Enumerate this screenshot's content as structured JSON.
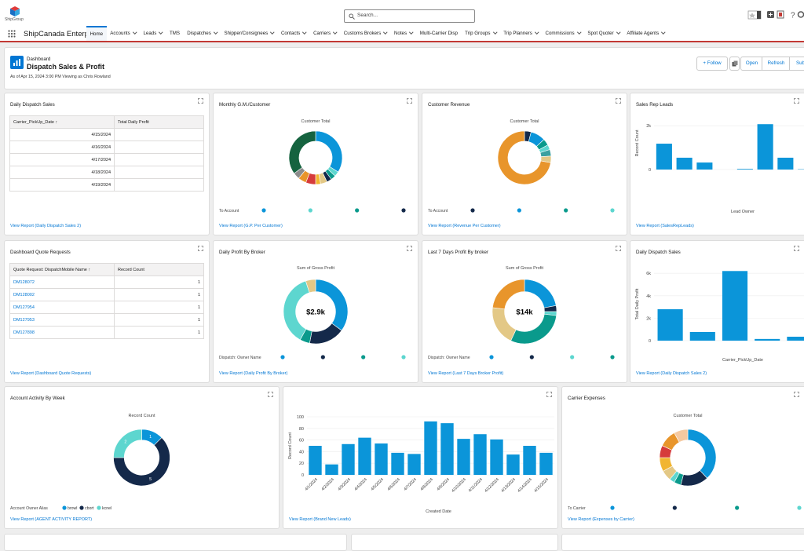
{
  "header": {
    "logo": "ShipGroup",
    "search": "Search...",
    "app_name": "ShipCanada Enterp...",
    "tabs": [
      "Home",
      "Accounts",
      "Leads",
      "TMS",
      "Dispatches",
      "Shipper/Consignees",
      "Contacts",
      "Carriers",
      "Customs Brokers",
      "Notes",
      "Multi-Carrier Disp",
      "Trip Groups",
      "Trip Planners",
      "Commissions",
      "Spot Quoter",
      "Affiliate Agents"
    ]
  },
  "dashboard": {
    "label": "Dashboard",
    "title": "Dispatch Sales & Profit",
    "subtitle": "As of Apr 15, 2024 3:00 PM Viewing as Chris Rowland",
    "follow": "Follow",
    "buttons": [
      "Open",
      "Refresh",
      "Subs"
    ]
  },
  "widgets": [
    {
      "type": "table",
      "title": "Daily Dispatch Sales",
      "footer": "View Report (Daily Dispatch Sales 2)",
      "columns": [
        "Carrier_PickUp_Date ↑",
        "Total Daily Profit"
      ],
      "rows": [
        [
          "4/15/2024"
        ],
        [
          "4/16/2024"
        ],
        [
          "4/17/2024"
        ],
        [
          "4/18/2024"
        ],
        [
          "4/19/2024"
        ]
      ]
    },
    {
      "type": "donut",
      "title": "Monthly G.M./Customer",
      "footer": "View Report (G.P. Per Customer)",
      "measure": "Customer Total",
      "legend_title": "To Account",
      "values": [
        34,
        3,
        3,
        3,
        4,
        3,
        6,
        5,
        4,
        35
      ],
      "colors": [
        "#0b95d9",
        "#5dd6cf",
        "#0a9a8c",
        "#14294a",
        "#e3c886",
        "#f1b530",
        "#d63b3b",
        "#e8952b",
        "#8c8c8c",
        "#15633f"
      ]
    },
    {
      "type": "donut",
      "title": "Customer Revenue",
      "footer": "View Report (Revenue Per Customer)",
      "measure": "Customer Total",
      "legend_title": "To Account",
      "values": [
        4,
        9,
        4,
        3,
        4,
        4,
        72
      ],
      "colors": [
        "#14294a",
        "#0b95d9",
        "#0a9a8c",
        "#5dd6cf",
        "#3aa0a0",
        "#e3c886",
        "#e8952b"
      ]
    },
    {
      "type": "bar",
      "title": "Sales Rep Leads",
      "footer": "View Report (SalesRepLeads)",
      "y_label": "Record Count",
      "x_label": "Lead Owner",
      "color": "#0b95d9",
      "values": [
        1180,
        540,
        320,
        0,
        30,
        2070,
        540,
        15
      ],
      "ylim": [
        0,
        2400
      ],
      "yticks": [
        0,
        {
          "value": 2000,
          "label": "2k"
        }
      ]
    },
    {
      "type": "table",
      "title": "Dashboard Quote Requests",
      "footer": "View Report (Dashboard Quote Requests)",
      "columns": [
        "Quote Request: DispatchMobile Name ↑",
        "Record Count"
      ],
      "rows": [
        [
          "DM128072",
          1
        ],
        [
          "DM128002",
          1
        ],
        [
          "DM127954",
          1
        ],
        [
          "DM127953",
          1
        ],
        [
          "DM127898",
          1
        ]
      ]
    },
    {
      "type": "donut",
      "title": "Daily Profit By Broker",
      "footer": "View Report (Daily Profit By Broker)",
      "measure": "Sum of Gross Profit",
      "center": "$2.9k",
      "legend_title": "Dispatch: Owner Name",
      "values": [
        35,
        18,
        5,
        37,
        5
      ],
      "colors": [
        "#0b95d9",
        "#14294a",
        "#0a9a8c",
        "#5dd6cf",
        "#e3c886"
      ]
    },
    {
      "type": "donut",
      "title": "Last 7 Days Profit By broker",
      "footer": "View Report (Last 7 Days Broker Profit)",
      "measure": "Sum of Gross Profit",
      "center": "$14k",
      "legend_title": "Dispatch: Owner Name",
      "values": [
        22,
        3,
        2,
        30,
        20,
        23
      ],
      "colors": [
        "#0b95d9",
        "#14294a",
        "#5dd6cf",
        "#0a9a8c",
        "#e3c886",
        "#e8952b"
      ]
    },
    {
      "type": "bar",
      "title": "Daily Dispatch Sales",
      "footer": "View Report (Daily Dispatch Sales 2)",
      "y_label": "Total Daily Profit",
      "x_label": "Carrier_PickUp_Date",
      "color": "#0b95d9",
      "values": [
        2800,
        770,
        6200,
        150,
        350
      ],
      "ylim": [
        0,
        6500
      ],
      "yticks": [
        0,
        {
          "value": 2000,
          "label": "2k"
        },
        {
          "value": 4000,
          "label": "4k"
        },
        {
          "value": 6000,
          "label": "6k"
        }
      ]
    },
    {
      "type": "donut",
      "title": "Account Activity By Week",
      "footer": "View Report (AGENT ACTIVITY REPORT)",
      "measure": "Record Count",
      "legend_title": "Account Owner Alias",
      "categories": [
        "browl",
        "cbort",
        "kcnel"
      ],
      "values": [
        1,
        5,
        2
      ],
      "colors": [
        "#0b95d9",
        "#14294a",
        "#5dd6cf"
      ]
    },
    {
      "type": "bar",
      "footer": "View Report (Brand New Leads)",
      "y_label": "Record Count",
      "x_label": "Created Date",
      "color": "#0b95d9",
      "categories": [
        "4/1/2024",
        "4/2/2024",
        "4/3/2024",
        "4/4/2024",
        "4/5/2024",
        "4/6/2024",
        "4/7/2024",
        "4/8/2024",
        "4/9/2024",
        "4/10/2024",
        "4/11/2024",
        "4/12/2024",
        "4/13/2024",
        "4/14/2024",
        "4/15/2024"
      ],
      "values": [
        50,
        18,
        53,
        64,
        54,
        38,
        36,
        92,
        89,
        62,
        70,
        61,
        35,
        50,
        38
      ],
      "ylim": [
        0,
        100
      ],
      "yticks": [
        0,
        20,
        40,
        60,
        80,
        100
      ]
    },
    {
      "type": "donut",
      "title": "Carrier Expenses",
      "footer": "View Report (Expenses by Carrier)",
      "measure": "Customer Total",
      "legend_title": "To Carrier",
      "values": [
        38,
        16,
        4,
        3,
        6,
        8,
        7,
        10,
        8
      ],
      "colors": [
        "#0b95d9",
        "#14294a",
        "#0a9a8c",
        "#5dd6cf",
        "#e3c886",
        "#f1b530",
        "#d63b3b",
        "#e8952b",
        "#f5c9a0"
      ]
    }
  ]
}
